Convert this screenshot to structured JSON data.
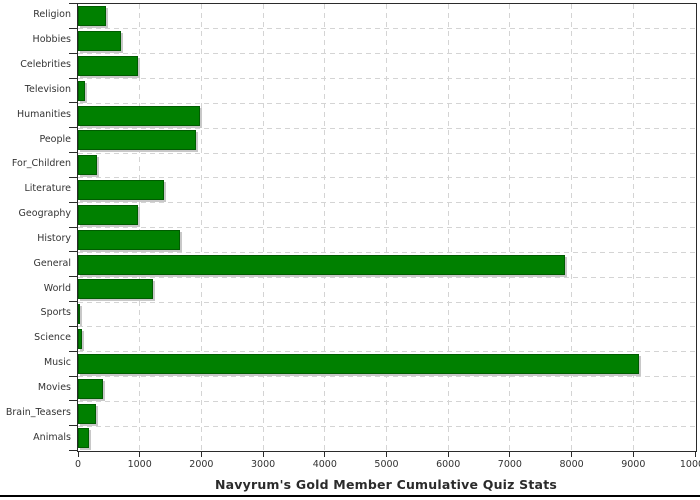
{
  "chart_data": {
    "type": "bar",
    "orientation": "horizontal",
    "title": "Navyrum's Gold Member Cumulative Quiz Stats",
    "categories": [
      "Religion",
      "Hobbies",
      "Celebrities",
      "Television",
      "Humanities",
      "People",
      "For_Children",
      "Literature",
      "Geography",
      "History",
      "General",
      "World",
      "Sports",
      "Science",
      "Music",
      "Movies",
      "Brain_Teasers",
      "Animals"
    ],
    "values": [
      460,
      700,
      980,
      110,
      1980,
      1920,
      300,
      1390,
      970,
      1650,
      7890,
      1220,
      40,
      70,
      9090,
      400,
      290,
      180
    ],
    "xlabel": "",
    "ylabel": "",
    "xlim": [
      0,
      10000
    ],
    "x_ticks": [
      0,
      1000,
      2000,
      3000,
      4000,
      5000,
      6000,
      7000,
      8000,
      9000,
      10000
    ],
    "grid": "dashed, both axes",
    "legend": "none",
    "colors": {
      "bar_fill": "#008000",
      "bar_border": "#005c00",
      "bar_shadow": "#c8c8c8",
      "grid": "#d4d4d4",
      "axis": "#2b2b2b",
      "label": "#333333",
      "title": "#2b2b2b",
      "background": "#ffffff",
      "bottom_divider": "#000000"
    }
  }
}
